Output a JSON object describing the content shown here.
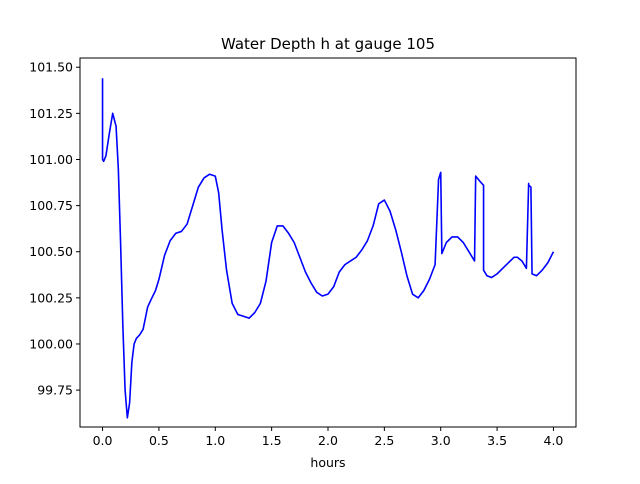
{
  "chart_data": {
    "type": "line",
    "title": "Water Depth h at gauge 105",
    "xlabel": "hours",
    "ylabel": "",
    "xlim": [
      -0.2,
      4.2
    ],
    "ylim": [
      99.55,
      101.55
    ],
    "xticks": [
      0.0,
      0.5,
      1.0,
      1.5,
      2.0,
      2.5,
      3.0,
      3.5,
      4.0
    ],
    "xtick_labels": [
      "0.0",
      "0.5",
      "1.0",
      "1.5",
      "2.0",
      "2.5",
      "3.0",
      "3.5",
      "4.0"
    ],
    "yticks": [
      99.75,
      100.0,
      100.25,
      100.5,
      100.75,
      101.0,
      101.25,
      101.5
    ],
    "ytick_labels": [
      "99.75",
      "100.00",
      "100.25",
      "100.50",
      "100.75",
      "101.00",
      "101.25",
      "101.50"
    ],
    "grid": false,
    "series": [
      {
        "color": "#0000ff",
        "x": [
          0.0,
          0.0,
          0.01,
          0.03,
          0.06,
          0.09,
          0.12,
          0.14,
          0.16,
          0.18,
          0.2,
          0.22,
          0.24,
          0.26,
          0.28,
          0.3,
          0.33,
          0.36,
          0.38,
          0.4,
          0.43,
          0.47,
          0.5,
          0.55,
          0.6,
          0.65,
          0.7,
          0.75,
          0.8,
          0.85,
          0.9,
          0.95,
          1.0,
          1.03,
          1.06,
          1.1,
          1.15,
          1.2,
          1.25,
          1.3,
          1.35,
          1.4,
          1.45,
          1.5,
          1.55,
          1.6,
          1.65,
          1.7,
          1.75,
          1.8,
          1.85,
          1.9,
          1.95,
          2.0,
          2.05,
          2.1,
          2.15,
          2.2,
          2.25,
          2.3,
          2.35,
          2.4,
          2.45,
          2.5,
          2.55,
          2.6,
          2.65,
          2.7,
          2.75,
          2.8,
          2.85,
          2.9,
          2.95,
          2.98,
          2.98,
          3.0,
          3.01,
          3.01,
          3.05,
          3.1,
          3.15,
          3.2,
          3.25,
          3.3,
          3.31,
          3.31,
          3.35,
          3.38,
          3.38,
          3.41,
          3.45,
          3.5,
          3.55,
          3.6,
          3.65,
          3.68,
          3.72,
          3.76,
          3.78,
          3.78,
          3.8,
          3.81,
          3.81,
          3.85,
          3.9,
          3.95,
          4.0
        ],
        "y": [
          101.44,
          101.0,
          100.99,
          101.02,
          101.14,
          101.25,
          101.18,
          100.95,
          100.55,
          100.1,
          99.75,
          99.6,
          99.68,
          99.9,
          100.0,
          100.03,
          100.05,
          100.08,
          100.14,
          100.2,
          100.24,
          100.29,
          100.35,
          100.48,
          100.56,
          100.6,
          100.61,
          100.65,
          100.75,
          100.85,
          100.9,
          100.92,
          100.91,
          100.82,
          100.62,
          100.4,
          100.22,
          100.16,
          100.15,
          100.14,
          100.17,
          100.22,
          100.34,
          100.55,
          100.64,
          100.64,
          100.6,
          100.55,
          100.47,
          100.39,
          100.33,
          100.28,
          100.26,
          100.27,
          100.31,
          100.39,
          100.43,
          100.45,
          100.47,
          100.51,
          100.56,
          100.64,
          100.76,
          100.78,
          100.72,
          100.62,
          100.5,
          100.37,
          100.27,
          100.25,
          100.29,
          100.35,
          100.43,
          100.88,
          100.89,
          100.93,
          100.49,
          100.49,
          100.55,
          100.58,
          100.58,
          100.55,
          100.5,
          100.45,
          100.91,
          100.91,
          100.88,
          100.86,
          100.4,
          100.37,
          100.36,
          100.38,
          100.41,
          100.44,
          100.47,
          100.47,
          100.45,
          100.41,
          100.87,
          100.86,
          100.85,
          100.38,
          100.38,
          100.37,
          100.4,
          100.44,
          100.5
        ]
      }
    ]
  }
}
